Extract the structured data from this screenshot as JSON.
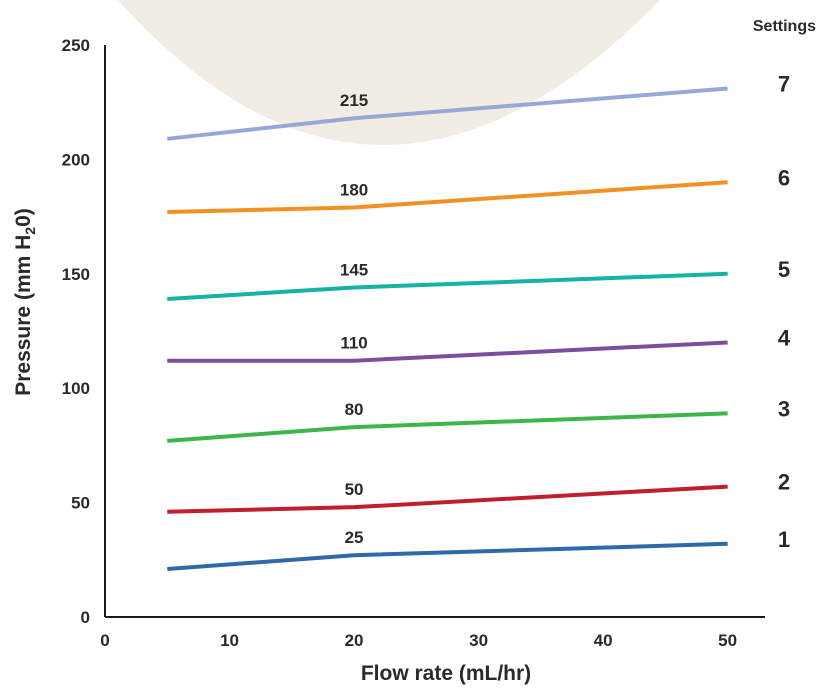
{
  "chart_data": {
    "type": "line",
    "xlabel": "Flow rate  (mL/hr)",
    "ylabel_parts": {
      "before": "Pressure (mm H",
      "sub": "2",
      "after": "0)"
    },
    "xlim": [
      0,
      53
    ],
    "ylim": [
      0,
      250
    ],
    "xticks": [
      0,
      10,
      20,
      30,
      40,
      50
    ],
    "yticks": [
      0,
      50,
      100,
      150,
      200,
      250
    ],
    "legend_title": "Settings",
    "series": [
      {
        "name": "1",
        "color": "#2e6aa8",
        "x": [
          5,
          20,
          50
        ],
        "y": [
          21,
          27,
          32
        ],
        "label": "25",
        "label_at": 20
      },
      {
        "name": "2",
        "color": "#c0202e",
        "x": [
          5,
          20,
          50
        ],
        "y": [
          46,
          48,
          57
        ],
        "label": "50",
        "label_at": 20
      },
      {
        "name": "3",
        "color": "#3db54a",
        "x": [
          5,
          20,
          50
        ],
        "y": [
          77,
          83,
          89
        ],
        "label": "80",
        "label_at": 20
      },
      {
        "name": "4",
        "color": "#7b4e9e",
        "x": [
          5,
          20,
          50
        ],
        "y": [
          112,
          112,
          120
        ],
        "label": "110",
        "label_at": 20
      },
      {
        "name": "5",
        "color": "#16b2a6",
        "x": [
          5,
          20,
          50
        ],
        "y": [
          139,
          144,
          150
        ],
        "label": "145",
        "label_at": 20
      },
      {
        "name": "6",
        "color": "#f29121",
        "x": [
          5,
          20,
          50
        ],
        "y": [
          177,
          179,
          190
        ],
        "label": "180",
        "label_at": 20
      },
      {
        "name": "7",
        "color": "#97a8d6",
        "x": [
          5,
          20,
          50
        ],
        "y": [
          209,
          218,
          231
        ],
        "label": "215",
        "label_at": 20
      }
    ]
  }
}
